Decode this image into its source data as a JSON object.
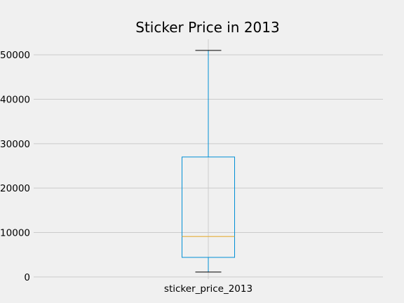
{
  "chart_data": {
    "type": "box",
    "title": "Sticker Price in 2013",
    "xlabel": "",
    "ylabel": "",
    "categories": [
      "sticker_price_2013"
    ],
    "boxes": [
      {
        "name": "sticker_price_2013",
        "whisker_low": 1100,
        "q1": 4400,
        "median": 9100,
        "q3": 27000,
        "whisker_high": 51000
      }
    ],
    "ylim": [
      -500,
      53500
    ],
    "yticks": [
      0,
      10000,
      20000,
      30000,
      40000,
      50000
    ],
    "grid": true,
    "legend": "none",
    "colors": {
      "background": "#f0f0f0",
      "grid": "#cbcbcb",
      "box": "#008fd5",
      "whisker": "#008fd5",
      "median": "#e5ae38"
    }
  }
}
